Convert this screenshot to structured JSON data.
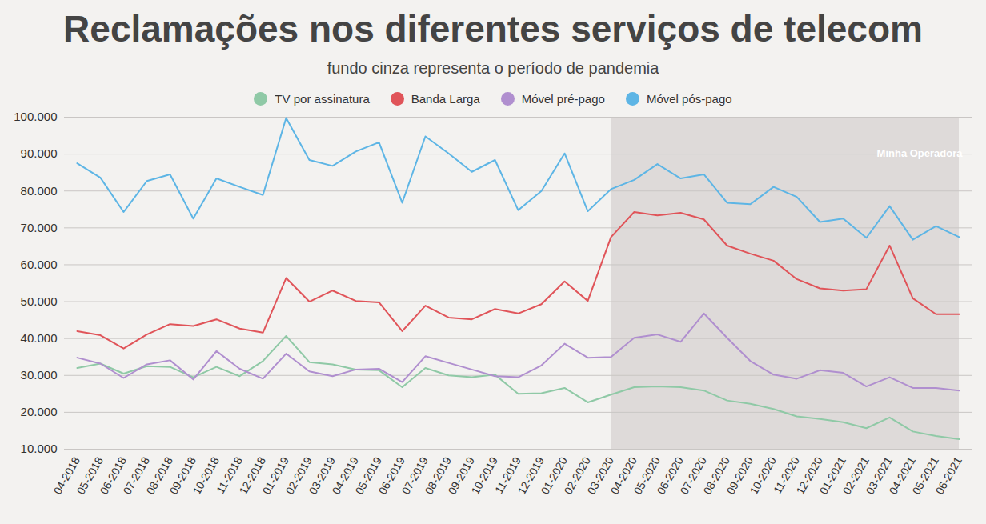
{
  "chart_data": {
    "type": "line",
    "title": "Reclamações nos diferentes serviços de telecom",
    "subtitle": "fundo cinza representa o período de pandemia",
    "annotations": [
      "Minha Operadora"
    ],
    "x": [
      "04-2018",
      "05-2018",
      "06-2018",
      "07-2018",
      "08-2018",
      "09-2018",
      "10-2018",
      "11-2018",
      "12-2018",
      "01-2019",
      "02-2019",
      "03-2019",
      "04-2019",
      "05-2019",
      "06-2019",
      "07-2019",
      "08-2019",
      "09-2019",
      "10-2019",
      "11-2019",
      "12-2019",
      "01-2020",
      "02-2020",
      "03-2020",
      "04-2020",
      "05-2020",
      "06-2020",
      "07-2020",
      "08-2020",
      "09-2020",
      "10-2020",
      "11-2020",
      "12-2020",
      "01-2021",
      "02-2021",
      "03-2021",
      "04-2021",
      "05-2021",
      "06-2021"
    ],
    "shaded_period": [
      "03-2020",
      "06-2021"
    ],
    "series": [
      {
        "name": "TV por assinatura",
        "color": "#8fc9a6",
        "values": [
          32000,
          33200,
          30500,
          32500,
          32300,
          29500,
          32300,
          29800,
          33900,
          40700,
          33600,
          33000,
          31600,
          31400,
          26800,
          32000,
          30000,
          29500,
          30200,
          25000,
          25200,
          26600,
          22700,
          24800,
          26800,
          27000,
          26800,
          25900,
          23200,
          22300,
          20900,
          18900,
          18200,
          17300,
          15700,
          18600,
          14800,
          13600,
          12700
        ]
      },
      {
        "name": "Banda Larga",
        "color": "#e05459",
        "values": [
          42000,
          40900,
          37300,
          41100,
          43900,
          43400,
          45200,
          42700,
          41600,
          56400,
          50000,
          53000,
          50200,
          49800,
          42000,
          48900,
          45700,
          45200,
          48000,
          46800,
          49300,
          55500,
          50200,
          67500,
          74300,
          73400,
          74100,
          72300,
          65200,
          63000,
          61100,
          56100,
          53600,
          53000,
          53400,
          65200,
          50900,
          46600,
          46600
        ]
      },
      {
        "name": "Móvel pré-pago",
        "color": "#b08fcf",
        "values": [
          34800,
          33200,
          29300,
          33000,
          34100,
          28900,
          36600,
          31800,
          29100,
          35900,
          31100,
          29800,
          31600,
          31800,
          28200,
          35200,
          33400,
          31600,
          29800,
          29500,
          32700,
          38600,
          34800,
          35000,
          40200,
          41100,
          39100,
          46800,
          40200,
          33900,
          30200,
          29100,
          31400,
          30700,
          27000,
          29500,
          26600,
          26600,
          25900
        ]
      },
      {
        "name": "Móvel pós-pago",
        "color": "#5db5e5",
        "values": [
          87500,
          83600,
          74300,
          82700,
          84500,
          72500,
          83400,
          81100,
          78900,
          99800,
          88400,
          86800,
          90700,
          93200,
          76800,
          94800,
          90200,
          85200,
          88400,
          74800,
          80000,
          90200,
          74500,
          80500,
          83000,
          87300,
          83400,
          84500,
          76800,
          76400,
          81100,
          78400,
          71600,
          72500,
          67300,
          75900,
          66800,
          70500,
          67500
        ]
      }
    ],
    "ylim": [
      10000,
      100000
    ],
    "yticks": [
      {
        "value": 10000,
        "label": "10.000"
      },
      {
        "value": 20000,
        "label": "20.000"
      },
      {
        "value": 30000,
        "label": "30.000"
      },
      {
        "value": 40000,
        "label": "40.000"
      },
      {
        "value": 50000,
        "label": "50.000"
      },
      {
        "value": 60000,
        "label": "60.000"
      },
      {
        "value": 70000,
        "label": "70.000"
      },
      {
        "value": 80000,
        "label": "80.000"
      },
      {
        "value": 90000,
        "label": "90.000"
      },
      {
        "value": 100000,
        "label": "100.000"
      }
    ],
    "grid": true,
    "legend": "top"
  }
}
